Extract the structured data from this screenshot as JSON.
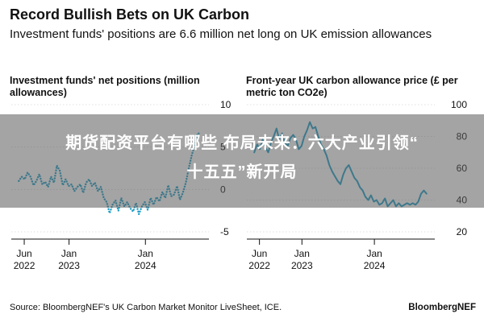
{
  "header": {
    "title": "Record Bullish Bets on UK Carbon",
    "subtitle": "Investment funds' positions are 6.6 million net long on UK emission allowances"
  },
  "chart_data": [
    {
      "type": "line",
      "title": "Investment funds' net positions (million allowances)",
      "x_ticks": [
        {
          "value": "2022-06",
          "label": "Jun\n2022"
        },
        {
          "value": "2023-01",
          "label": "Jan\n2023"
        },
        {
          "value": "2024-01",
          "label": "Jan\n2024"
        }
      ],
      "y_ticks": [
        10,
        5,
        0,
        -5
      ],
      "ylim": [
        -5,
        10
      ],
      "series": [
        {
          "line_color": "#1e9ec8",
          "line_style": "dotted",
          "x": [
            "2022-05-06",
            "2022-05-20",
            "2022-06-03",
            "2022-06-17",
            "2022-07-01",
            "2022-07-15",
            "2022-07-29",
            "2022-08-12",
            "2022-08-26",
            "2022-09-09",
            "2022-09-23",
            "2022-10-07",
            "2022-10-21",
            "2022-11-04",
            "2022-11-18",
            "2022-12-02",
            "2022-12-16",
            "2022-12-30",
            "2023-01-13",
            "2023-01-27",
            "2023-02-10",
            "2023-02-24",
            "2023-03-10",
            "2023-03-24",
            "2023-04-07",
            "2023-04-21",
            "2023-05-05",
            "2023-05-19",
            "2023-06-02",
            "2023-06-16",
            "2023-06-30",
            "2023-07-14",
            "2023-07-28",
            "2023-08-11",
            "2023-08-25",
            "2023-09-08",
            "2023-09-22",
            "2023-10-06",
            "2023-10-20",
            "2023-11-03",
            "2023-11-17",
            "2023-12-01",
            "2023-12-15",
            "2023-12-29",
            "2024-01-12",
            "2024-01-26",
            "2024-02-09",
            "2024-02-23",
            "2024-03-08",
            "2024-03-22",
            "2024-04-05",
            "2024-04-19",
            "2024-05-03",
            "2024-05-17",
            "2024-05-31",
            "2024-06-14",
            "2024-06-28",
            "2024-07-12",
            "2024-07-26",
            "2024-08-09",
            "2024-08-23",
            "2024-09-06",
            "2024-09-20"
          ],
          "values": [
            1.0,
            1.5,
            1.2,
            2.0,
            1.5,
            0.5,
            1.0,
            1.8,
            0.6,
            0.9,
            0.3,
            1.5,
            0.8,
            2.8,
            2.2,
            0.5,
            1.2,
            0.4,
            0.6,
            -0.2,
            0.3,
            0.6,
            -0.4,
            0.8,
            1.2,
            0.4,
            0.8,
            -0.2,
            0.3,
            -1.0,
            -1.5,
            -2.8,
            -1.8,
            -1.3,
            -2.5,
            -1.0,
            -2.0,
            -1.5,
            -2.2,
            -2.6,
            -1.6,
            -2.9,
            -2.0,
            -1.5,
            -2.4,
            -1.0,
            -1.8,
            -0.9,
            -1.4,
            -0.3,
            -1.0,
            0.5,
            -0.8,
            -0.6,
            0.4,
            -1.2,
            -0.4,
            0.8,
            2.5,
            4.0,
            5.2,
            6.6,
            6.6
          ]
        }
      ]
    },
    {
      "type": "line",
      "title": "Front-year UK carbon allowance price (£ per metric ton CO2e)",
      "x_ticks": [
        {
          "value": "2022-06",
          "label": "Jun\n2022"
        },
        {
          "value": "2023-01",
          "label": "Jan\n2023"
        },
        {
          "value": "2024-01",
          "label": "Jan\n2024"
        }
      ],
      "y_ticks": [
        100,
        80,
        60,
        40,
        20
      ],
      "ylim": [
        20,
        100
      ],
      "series": [
        {
          "line_color": "#1e9ec8",
          "line_style": "solid",
          "x": [
            "2022-05-06",
            "2022-05-20",
            "2022-06-03",
            "2022-06-17",
            "2022-07-01",
            "2022-07-15",
            "2022-07-29",
            "2022-08-12",
            "2022-08-26",
            "2022-09-09",
            "2022-09-23",
            "2022-10-07",
            "2022-10-21",
            "2022-11-04",
            "2022-11-18",
            "2022-12-02",
            "2022-12-16",
            "2022-12-30",
            "2023-01-13",
            "2023-01-27",
            "2023-02-10",
            "2023-02-24",
            "2023-03-10",
            "2023-03-24",
            "2023-04-07",
            "2023-04-21",
            "2023-05-05",
            "2023-05-19",
            "2023-06-02",
            "2023-06-16",
            "2023-06-30",
            "2023-07-14",
            "2023-07-28",
            "2023-08-11",
            "2023-08-25",
            "2023-09-08",
            "2023-09-22",
            "2023-10-06",
            "2023-10-20",
            "2023-11-03",
            "2023-11-17",
            "2023-12-01",
            "2023-12-15",
            "2023-12-29",
            "2024-01-12",
            "2024-01-26",
            "2024-02-09",
            "2024-02-23",
            "2024-03-08",
            "2024-03-22",
            "2024-04-05",
            "2024-04-19",
            "2024-05-03",
            "2024-05-17",
            "2024-05-31",
            "2024-06-14",
            "2024-06-28",
            "2024-07-12",
            "2024-07-26",
            "2024-08-09",
            "2024-08-23",
            "2024-09-06",
            "2024-09-20"
          ],
          "values": [
            70,
            75,
            72,
            78,
            73,
            70,
            76,
            80,
            85,
            78,
            82,
            76,
            74,
            79,
            81,
            78,
            72,
            74,
            80,
            84,
            89,
            85,
            86,
            80,
            75,
            72,
            68,
            62,
            58,
            55,
            52,
            50,
            56,
            60,
            62,
            58,
            54,
            52,
            48,
            46,
            42,
            40,
            43,
            39,
            40,
            37,
            38,
            41,
            36,
            38,
            40,
            36,
            38,
            36,
            37,
            38,
            37,
            38,
            37,
            39,
            44,
            46,
            44
          ]
        }
      ]
    }
  ],
  "overlay": {
    "line1": "期货配资平台有哪些 布局未来：六大产业引领“",
    "line2": "十五五”新开局"
  },
  "footer": {
    "source": "Source: BloombergNEF's UK Carbon Market Monitor LiveSheet, ICE.",
    "brand": "BloombergNEF"
  }
}
